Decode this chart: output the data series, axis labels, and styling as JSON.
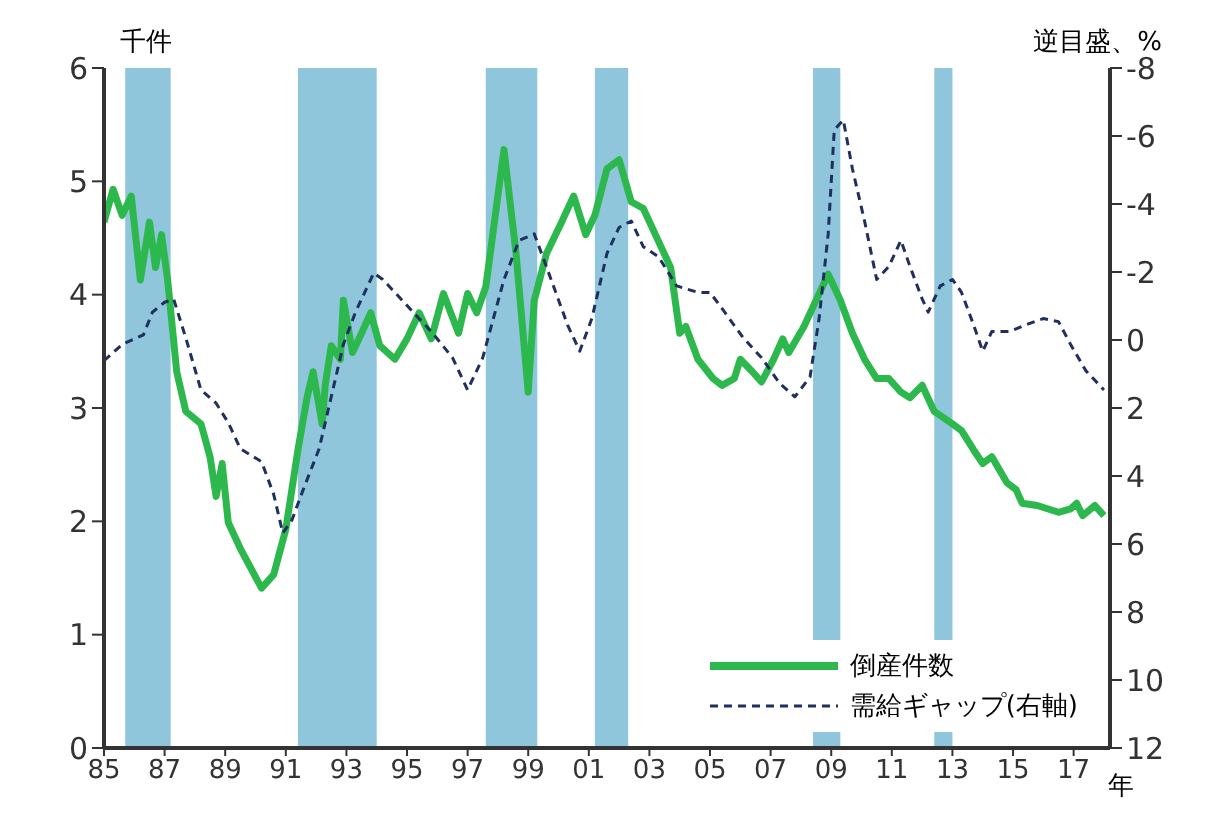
{
  "chart_data": {
    "type": "line",
    "ylabel": "千件",
    "y2label": "逆目盛、%",
    "xlim": [
      1985,
      2018.2
    ],
    "xticks": [
      {
        "value": 1985,
        "label": "85"
      },
      {
        "value": 1987,
        "label": "87"
      },
      {
        "value": 1989,
        "label": "89"
      },
      {
        "value": 1991,
        "label": "91"
      },
      {
        "value": 1993,
        "label": "93"
      },
      {
        "value": 1995,
        "label": "95"
      },
      {
        "value": 1997,
        "label": "97"
      },
      {
        "value": 1999,
        "label": "99"
      },
      {
        "value": 2001,
        "label": "01"
      },
      {
        "value": 2003,
        "label": "03"
      },
      {
        "value": 2005,
        "label": "05"
      },
      {
        "value": 2007,
        "label": "07"
      },
      {
        "value": 2009,
        "label": "09"
      },
      {
        "value": 2011,
        "label": "11"
      },
      {
        "value": 2013,
        "label": "13"
      },
      {
        "value": 2015,
        "label": "15"
      },
      {
        "value": 2017,
        "label": "17"
      }
    ],
    "xlabel": "年",
    "ylim": [
      0,
      6
    ],
    "yticks": [
      0,
      1,
      2,
      3,
      4,
      5,
      6
    ],
    "y2lim": [
      12,
      -8
    ],
    "y2ticks": [
      -8,
      -6,
      -4,
      -2,
      0,
      2,
      4,
      6,
      8,
      10,
      12
    ],
    "grid": false,
    "legend": "bottom right",
    "marker": "none",
    "bands": [
      {
        "axis": "x",
        "from": 1985.7,
        "to": 1987.2,
        "color": "#8fc6dc"
      },
      {
        "axis": "x",
        "from": 1991.4,
        "to": 1994.0,
        "color": "#8fc6dc"
      },
      {
        "axis": "x",
        "from": 1997.6,
        "to": 1999.3,
        "color": "#8fc6dc"
      },
      {
        "axis": "x",
        "from": 2001.2,
        "to": 2002.3,
        "color": "#8fc6dc"
      },
      {
        "axis": "x",
        "from": 2008.4,
        "to": 2009.3,
        "color": "#8fc6dc"
      },
      {
        "axis": "x",
        "from": 2012.4,
        "to": 2013.0,
        "color": "#8fc6dc"
      }
    ],
    "series": [
      {
        "name": "倒産件数",
        "color": "#2db84d",
        "line_style": "solid",
        "x": [
          1985.0,
          1985.3,
          1985.6,
          1985.9,
          1986.2,
          1986.5,
          1986.7,
          1986.9,
          1987.1,
          1987.4,
          1987.7,
          1988.2,
          1988.5,
          1988.7,
          1988.9,
          1989.1,
          1989.5,
          1990.2,
          1990.6,
          1991.0,
          1991.4,
          1991.7,
          1991.9,
          1992.2,
          1992.3,
          1992.5,
          1992.8,
          1992.9,
          1993.2,
          1993.5,
          1993.8,
          1994.1,
          1994.6,
          1995.0,
          1995.4,
          1995.8,
          1996.2,
          1996.7,
          1997.0,
          1997.3,
          1997.6,
          1997.8,
          1998.2,
          1998.6,
          1999.0,
          1999.2,
          1999.6,
          2000.1,
          2000.5,
          2000.9,
          2001.2,
          2001.6,
          2002.0,
          2002.4,
          2002.8,
          2003.3,
          2003.7,
          2004.0,
          2004.2,
          2004.6,
          2005.1,
          2005.4,
          2005.8,
          2006.0,
          2006.4,
          2006.7,
          2007.1,
          2007.4,
          2007.6,
          2008.1,
          2008.5,
          2008.9,
          2009.3,
          2009.7,
          2010.1,
          2010.5,
          2010.9,
          2011.3,
          2011.6,
          2012.0,
          2012.4,
          2013.0,
          2013.3,
          2013.7,
          2014.0,
          2014.3,
          2014.8,
          2015.1,
          2015.3,
          2015.8,
          2016.5,
          2016.9,
          2017.1,
          2017.3,
          2017.7,
          2018.0
        ],
        "values": [
          4.64,
          4.93,
          4.7,
          4.87,
          4.13,
          4.64,
          4.24,
          4.53,
          4.13,
          3.32,
          2.97,
          2.86,
          2.57,
          2.22,
          2.51,
          1.99,
          1.76,
          1.41,
          1.53,
          1.93,
          2.63,
          3.09,
          3.32,
          2.86,
          3.2,
          3.55,
          3.43,
          3.95,
          3.49,
          3.66,
          3.84,
          3.55,
          3.43,
          3.61,
          3.84,
          3.61,
          4.01,
          3.66,
          4.01,
          3.84,
          4.07,
          4.47,
          5.28,
          4.36,
          3.14,
          3.95,
          4.36,
          4.64,
          4.87,
          4.53,
          4.7,
          5.11,
          5.19,
          4.82,
          4.76,
          4.47,
          4.24,
          3.66,
          3.72,
          3.43,
          3.26,
          3.2,
          3.26,
          3.43,
          3.32,
          3.23,
          3.43,
          3.61,
          3.49,
          3.72,
          3.95,
          4.18,
          3.95,
          3.66,
          3.43,
          3.26,
          3.26,
          3.14,
          3.09,
          3.2,
          2.97,
          2.86,
          2.8,
          2.63,
          2.51,
          2.57,
          2.34,
          2.28,
          2.16,
          2.14,
          2.08,
          2.11,
          2.16,
          2.05,
          2.14,
          2.05
        ]
      },
      {
        "name": "需給ギャップ(右軸)",
        "color": "#1f2f5e",
        "line_style": "dashed",
        "axis": "y2",
        "x": [
          1985.0,
          1985.6,
          1986.3,
          1986.6,
          1987.0,
          1987.3,
          1987.7,
          1988.2,
          1988.7,
          1989.1,
          1989.5,
          1990.2,
          1990.6,
          1990.9,
          1991.2,
          1991.6,
          1992.1,
          1992.5,
          1992.9,
          1993.3,
          1993.9,
          1994.2,
          1994.6,
          1995.2,
          1995.8,
          1996.5,
          1997.0,
          1997.5,
          1998.2,
          1998.7,
          1999.2,
          1999.6,
          2000.3,
          2000.7,
          2001.1,
          2001.6,
          2002.0,
          2002.4,
          2002.8,
          2003.3,
          2003.9,
          2004.6,
          2005.0,
          2005.4,
          2006.1,
          2006.7,
          2007.3,
          2007.8,
          2008.3,
          2008.6,
          2008.9,
          2009.1,
          2009.4,
          2009.7,
          2010.1,
          2010.5,
          2010.9,
          2011.3,
          2011.6,
          2012.0,
          2012.2,
          2012.6,
          2013.0,
          2013.3,
          2013.7,
          2014.0,
          2014.3,
          2014.9,
          2015.4,
          2016.0,
          2016.5,
          2016.9,
          2017.4,
          2018.0
        ],
        "values": [
          0.61,
          0.13,
          -0.15,
          -0.82,
          -1.11,
          -1.2,
          -0.06,
          1.47,
          1.86,
          2.43,
          3.2,
          3.58,
          4.54,
          5.68,
          5.3,
          4.34,
          3.2,
          1.67,
          0.13,
          -0.82,
          -1.97,
          -1.78,
          -1.4,
          -0.82,
          -0.25,
          0.52,
          1.47,
          0.52,
          -1.78,
          -2.93,
          -3.12,
          -2.16,
          -0.44,
          0.33,
          -0.63,
          -2.55,
          -3.31,
          -3.5,
          -2.74,
          -2.45,
          -1.59,
          -1.4,
          -1.4,
          -0.92,
          -0.06,
          0.52,
          1.28,
          1.67,
          1.09,
          -0.63,
          -3.12,
          -6.18,
          -6.47,
          -5.03,
          -3.5,
          -1.78,
          -2.16,
          -2.93,
          -2.16,
          -1.21,
          -0.82,
          -1.59,
          -1.78,
          -1.4,
          -0.44,
          0.33,
          -0.25,
          -0.25,
          -0.44,
          -0.63,
          -0.54,
          0.13,
          0.9,
          1.47
        ]
      }
    ]
  }
}
